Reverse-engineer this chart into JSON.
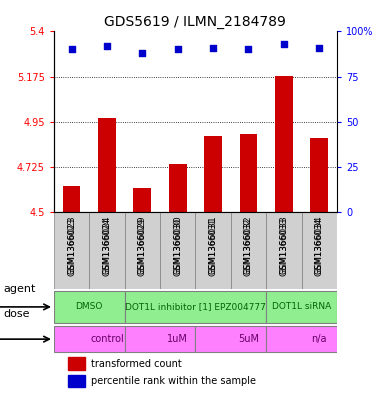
{
  "title": "GDS5619 / ILMN_2184789",
  "samples": [
    "GSM1366023",
    "GSM1366024",
    "GSM1366029",
    "GSM1366030",
    "GSM1366031",
    "GSM1366032",
    "GSM1366033",
    "GSM1366034"
  ],
  "bar_values": [
    4.63,
    4.97,
    4.62,
    4.74,
    4.88,
    4.89,
    5.18,
    4.87
  ],
  "dot_values": [
    90,
    92,
    88,
    90,
    91,
    90,
    93,
    91
  ],
  "ylim": [
    4.5,
    5.4
  ],
  "yticks": [
    4.5,
    4.725,
    4.95,
    5.175,
    5.4
  ],
  "ytick_labels": [
    "4.5",
    "4.725",
    "4.95",
    "5.175",
    "5.4"
  ],
  "right_yticks": [
    0,
    25,
    50,
    75,
    100
  ],
  "right_ytick_labels": [
    "0",
    "25",
    "50",
    "75",
    "100%"
  ],
  "bar_color": "#cc0000",
  "dot_color": "#0000cc",
  "bar_base": 4.5,
  "agents": [
    {
      "label": "DMSO",
      "start": 0,
      "end": 2,
      "color": "#90ee90"
    },
    {
      "label": "DOT1L inhibitor [1] EPZ004777",
      "start": 2,
      "end": 6,
      "color": "#90ee90"
    },
    {
      "label": "DOT1L siRNA",
      "start": 6,
      "end": 8,
      "color": "#90ee90"
    }
  ],
  "doses": [
    {
      "label": "control",
      "start": 0,
      "end": 2,
      "color": "#ff80ff"
    },
    {
      "label": "1uM",
      "start": 2,
      "end": 4,
      "color": "#ff80ff"
    },
    {
      "label": "5uM",
      "start": 4,
      "end": 6,
      "color": "#ff80ff"
    },
    {
      "label": "n/a",
      "start": 6,
      "end": 8,
      "color": "#ff80ff"
    }
  ],
  "agent_label_color": "#006600",
  "dose_label_color": "#660066",
  "legend_items": [
    {
      "label": "transformed count",
      "color": "#cc0000",
      "marker": "s"
    },
    {
      "label": "percentile rank within the sample",
      "color": "#0000cc",
      "marker": "s"
    }
  ]
}
